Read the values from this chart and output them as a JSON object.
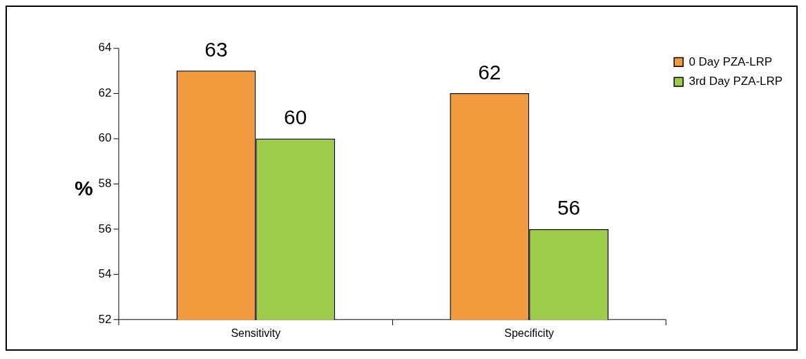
{
  "chart_data": {
    "type": "bar",
    "ylabel": "%",
    "categories": [
      "Sensitivity",
      "Specificity"
    ],
    "series": [
      {
        "name": "0 Day PZA-LRP",
        "color": "#f19a3e",
        "values": [
          63,
          62
        ]
      },
      {
        "name": "3rd Day PZA-LRP",
        "color": "#9ccc4a",
        "values": [
          60,
          56
        ]
      }
    ],
    "ylim": [
      52,
      64
    ],
    "yticks": [
      52,
      54,
      56,
      58,
      60,
      62,
      64
    ],
    "grid": false,
    "legend": "top right",
    "data_labels": true
  }
}
